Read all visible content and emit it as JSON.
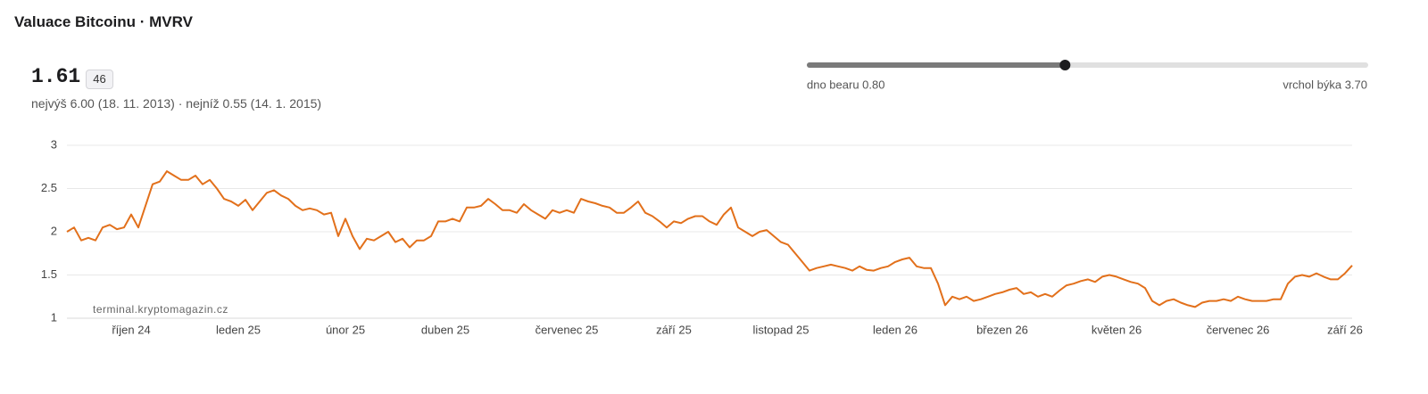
{
  "header": {
    "title": "Valuace Bitcoinu · MVRV"
  },
  "summary": {
    "value": 1.61,
    "badge": 46,
    "range": "nejvýš 6.00 (18. 11. 2013) · nejníž 0.55 (14. 1. 2015)"
  },
  "gauge": {
    "range": [
      0,
      100
    ],
    "min_label": "dno bearu 0.80",
    "max_label": "vrchol býka 3.70"
  },
  "chart_data": {
    "type": "line",
    "color": "#e2701b",
    "grid": true,
    "annotation": "terminal.kryptomagazin.cz",
    "ylim": [
      1,
      3
    ],
    "yticks": [
      1,
      1.5,
      2,
      2.5,
      3
    ],
    "categories": [
      null,
      null,
      null,
      null,
      null,
      null,
      null,
      null,
      null,
      "říjen 24",
      null,
      null,
      null,
      null,
      null,
      null,
      null,
      null,
      null,
      null,
      null,
      null,
      null,
      null,
      "leden 25",
      null,
      null,
      null,
      null,
      null,
      null,
      null,
      null,
      null,
      null,
      null,
      null,
      null,
      null,
      "únor 25",
      null,
      null,
      null,
      null,
      null,
      null,
      null,
      null,
      null,
      null,
      null,
      null,
      null,
      "duben 25",
      null,
      null,
      null,
      null,
      null,
      null,
      null,
      null,
      null,
      null,
      null,
      null,
      null,
      null,
      null,
      null,
      "červenec 25",
      null,
      null,
      null,
      null,
      null,
      null,
      null,
      null,
      null,
      null,
      null,
      null,
      null,
      null,
      "září 25",
      null,
      null,
      null,
      null,
      null,
      null,
      null,
      null,
      null,
      null,
      null,
      null,
      null,
      null,
      "listopad 25",
      null,
      null,
      null,
      null,
      null,
      null,
      null,
      null,
      null,
      null,
      null,
      null,
      null,
      null,
      null,
      "leden 26",
      null,
      null,
      null,
      null,
      null,
      null,
      null,
      null,
      null,
      null,
      null,
      null,
      null,
      null,
      "březen 26",
      null,
      null,
      null,
      null,
      null,
      null,
      null,
      null,
      null,
      null,
      null,
      null,
      null,
      null,
      null,
      "květen 26",
      null,
      null,
      null,
      null,
      null,
      null,
      null,
      null,
      null,
      null,
      null,
      null,
      null,
      null,
      null,
      null,
      "červenec 26",
      null,
      null,
      null,
      null,
      null,
      null,
      null,
      null,
      null,
      null,
      null,
      null,
      null,
      null,
      "září 26",
      null
    ],
    "values": [
      2.0,
      2.05,
      1.9,
      1.93,
      1.9,
      2.05,
      2.08,
      2.03,
      2.05,
      2.2,
      2.05,
      2.3,
      2.55,
      2.58,
      2.7,
      2.65,
      2.6,
      2.6,
      2.65,
      2.55,
      2.6,
      2.5,
      2.38,
      2.35,
      2.3,
      2.37,
      2.25,
      2.35,
      2.45,
      2.48,
      2.42,
      2.38,
      2.3,
      2.25,
      2.27,
      2.25,
      2.2,
      2.22,
      1.95,
      2.15,
      1.95,
      1.8,
      1.92,
      1.9,
      1.95,
      2.0,
      1.88,
      1.92,
      1.82,
      1.9,
      1.9,
      1.95,
      2.12,
      2.12,
      2.15,
      2.12,
      2.28,
      2.28,
      2.3,
      2.38,
      2.32,
      2.25,
      2.25,
      2.22,
      2.32,
      2.25,
      2.2,
      2.15,
      2.25,
      2.22,
      2.25,
      2.22,
      2.38,
      2.35,
      2.33,
      2.3,
      2.28,
      2.22,
      2.22,
      2.28,
      2.35,
      2.22,
      2.18,
      2.12,
      2.05,
      2.12,
      2.1,
      2.15,
      2.18,
      2.18,
      2.12,
      2.08,
      2.2,
      2.28,
      2.05,
      2.0,
      1.95,
      2.0,
      2.02,
      1.95,
      1.88,
      1.85,
      1.75,
      1.65,
      1.55,
      1.58,
      1.6,
      1.62,
      1.6,
      1.58,
      1.55,
      1.6,
      1.56,
      1.55,
      1.58,
      1.6,
      1.65,
      1.68,
      1.7,
      1.6,
      1.58,
      1.58,
      1.4,
      1.15,
      1.25,
      1.22,
      1.25,
      1.2,
      1.22,
      1.25,
      1.28,
      1.3,
      1.33,
      1.35,
      1.28,
      1.3,
      1.25,
      1.28,
      1.25,
      1.32,
      1.38,
      1.4,
      1.43,
      1.45,
      1.42,
      1.48,
      1.5,
      1.48,
      1.45,
      1.42,
      1.4,
      1.35,
      1.2,
      1.15,
      1.2,
      1.22,
      1.18,
      1.15,
      1.13,
      1.18,
      1.2,
      1.2,
      1.22,
      1.2,
      1.25,
      1.22,
      1.2,
      1.2,
      1.2,
      1.22,
      1.22,
      1.4,
      1.48,
      1.5,
      1.48,
      1.52,
      1.48,
      1.45,
      1.45,
      1.52,
      1.61
    ]
  }
}
